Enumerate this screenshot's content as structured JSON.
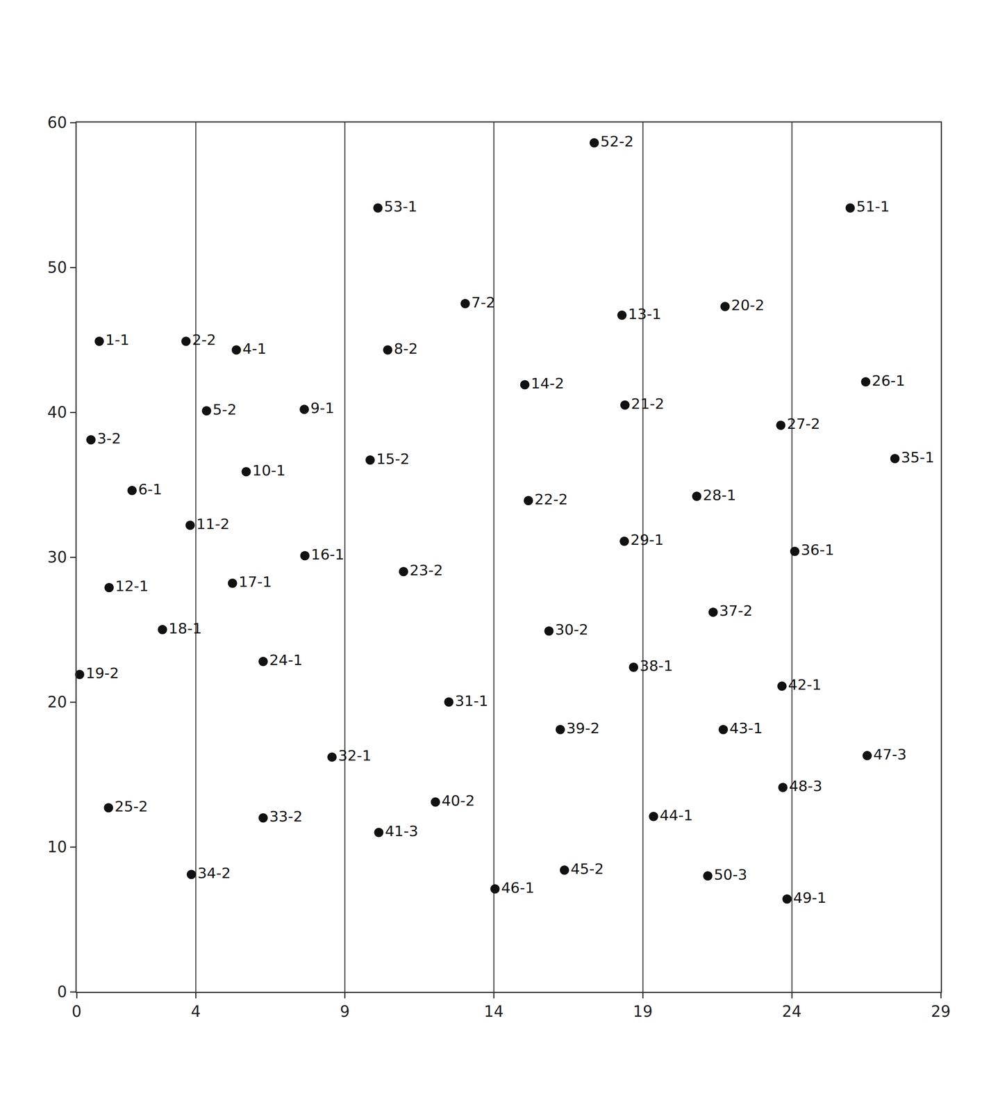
{
  "chart_data": {
    "type": "scatter",
    "x": [
      0.76,
      3.67,
      5.36,
      4.36,
      7.64,
      0.48,
      5.69,
      1.86,
      3.81,
      7.66,
      1.09,
      5.23,
      2.88,
      6.26,
      0.1,
      1.07,
      6.26,
      3.85,
      10.11,
      13.04,
      10.44,
      9.85,
      10.97,
      12.49,
      8.57,
      12.04,
      10.14,
      14.04,
      17.37,
      15.04,
      15.16,
      15.85,
      16.23,
      16.37,
      18.3,
      18.4,
      18.38,
      18.69,
      19.36,
      21.76,
      20.81,
      21.36,
      21.7,
      21.18,
      23.63,
      24.1,
      23.67,
      23.7,
      23.84,
      25.96,
      26.48,
      27.46,
      26.53
    ],
    "values": [
      44.9,
      44.9,
      44.3,
      40.1,
      40.2,
      38.1,
      35.9,
      34.6,
      32.2,
      30.1,
      27.9,
      28.2,
      25.0,
      22.8,
      21.9,
      12.7,
      12.0,
      8.1,
      54.1,
      47.5,
      44.3,
      36.7,
      29.0,
      20.0,
      16.2,
      13.1,
      11.0,
      7.1,
      58.6,
      41.9,
      33.9,
      24.9,
      18.1,
      8.4,
      46.7,
      40.5,
      31.1,
      22.4,
      12.1,
      47.3,
      34.2,
      26.2,
      18.1,
      8.0,
      39.1,
      30.4,
      21.1,
      14.1,
      6.4,
      54.1,
      42.1,
      36.8,
      16.3
    ],
    "labels": [
      "1-1",
      "2-2",
      "4-1",
      "5-2",
      "9-1",
      "3-2",
      "10-1",
      "6-1",
      "11-2",
      "16-1",
      "12-1",
      "17-1",
      "18-1",
      "24-1",
      "19-2",
      "25-2",
      "33-2",
      "34-2",
      "53-1",
      "7-2",
      "8-2",
      "15-2",
      "23-2",
      "31-1",
      "32-1",
      "40-2",
      "41-3",
      "46-1",
      "52-2",
      "14-2",
      "22-2",
      "30-2",
      "39-2",
      "45-2",
      "13-1",
      "21-2",
      "29-1",
      "38-1",
      "44-1",
      "20-2",
      "28-1",
      "37-2",
      "43-1",
      "50-3",
      "27-2",
      "36-1",
      "42-1",
      "48-3",
      "49-1",
      "51-1",
      "26-1",
      "35-1",
      "47-3"
    ],
    "color": "#111111",
    "marker": "circle",
    "xlim": [
      0,
      29
    ],
    "xticks": [
      0,
      4,
      9,
      14,
      19,
      24,
      29
    ],
    "ylim": [
      0,
      60
    ],
    "yticks": [
      0,
      10,
      20,
      30,
      40,
      50,
      60
    ],
    "grid": true
  }
}
